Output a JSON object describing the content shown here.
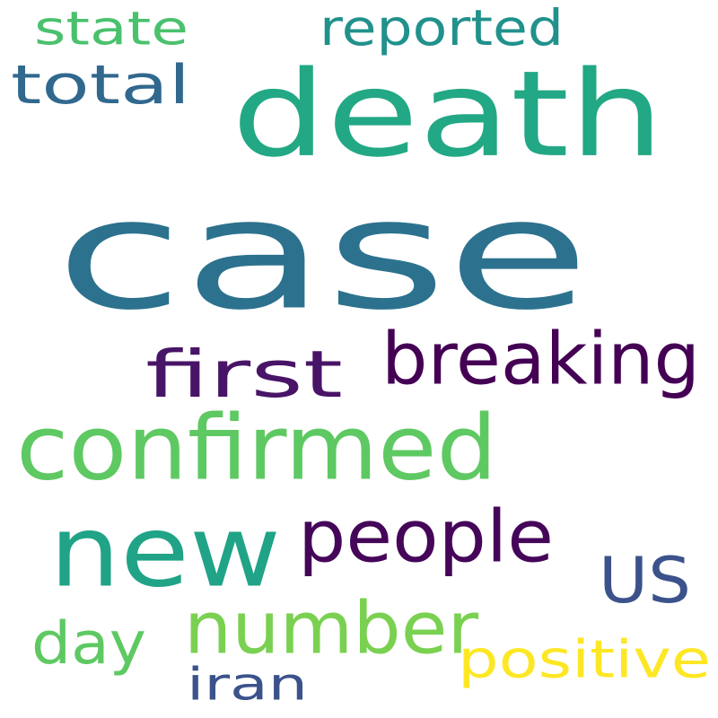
{
  "wordcloud": {
    "background": "#ffffff",
    "words": [
      {
        "text": "case",
        "color": "#2c728e"
      },
      {
        "text": "death",
        "color": "#22a884"
      },
      {
        "text": "confirmed",
        "color": "#5ec962"
      },
      {
        "text": "new",
        "color": "#20a386"
      },
      {
        "text": "breaking",
        "color": "#440154"
      },
      {
        "text": "first",
        "color": "#481467"
      },
      {
        "text": "people",
        "color": "#450559"
      },
      {
        "text": "number",
        "color": "#7ad151"
      },
      {
        "text": "US",
        "color": "#3b528b"
      },
      {
        "text": "total",
        "color": "#31688e"
      },
      {
        "text": "reported",
        "color": "#21918c"
      },
      {
        "text": "state",
        "color": "#4ac16d"
      },
      {
        "text": "day",
        "color": "#5ec962"
      },
      {
        "text": "positive",
        "color": "#fde725"
      },
      {
        "text": "iran",
        "color": "#3b528b"
      }
    ]
  }
}
